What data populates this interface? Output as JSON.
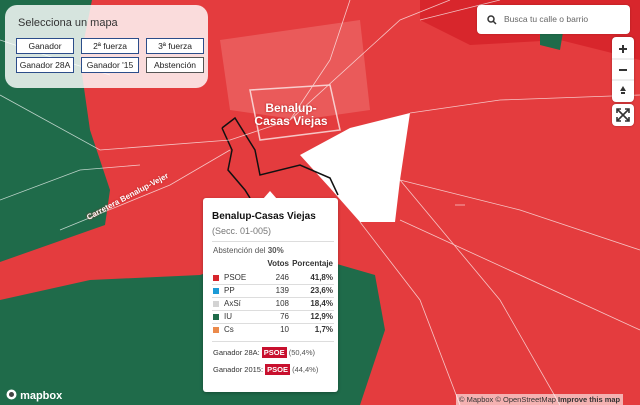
{
  "selector": {
    "title": "Selecciona un mapa",
    "buttons": [
      "Ganador",
      "2ª fuerza",
      "3ª fuerza",
      "Ganador 28A",
      "Ganador '15",
      "Abstención"
    ]
  },
  "search": {
    "placeholder": "Busca tu calle o barrio"
  },
  "map_labels": {
    "town": "Benalup-Casas Viejas",
    "road": "Carretera Benalup-Vejer"
  },
  "popup": {
    "title": "Benalup-Casas Viejas",
    "subtitle": "(Secc. 01-005)",
    "abstention_label": "Abstención del",
    "abstention_value": "30%",
    "headers": [
      "Votos",
      "Porcentaje"
    ],
    "rows": [
      {
        "party": "PSOE",
        "color": "#d7252c",
        "votes": 246,
        "pct": "41,8%"
      },
      {
        "party": "PP",
        "color": "#1b9ad6",
        "votes": 139,
        "pct": "23,6%"
      },
      {
        "party": "AxSí",
        "color": "#d3d3d3",
        "votes": 108,
        "pct": "18,4%"
      },
      {
        "party": "IU",
        "color": "#1f6b4a",
        "votes": 76,
        "pct": "12,9%"
      },
      {
        "party": "Cs",
        "color": "#eb8a4b",
        "votes": 10,
        "pct": "1,7%"
      }
    ],
    "winners": [
      {
        "label": "Ganador 28A:",
        "party": "PSOE",
        "pct": "(50,4%)"
      },
      {
        "label": "Ganador 2015:",
        "party": "PSOE",
        "pct": "(44,4%)"
      }
    ]
  },
  "footer": {
    "logo": "mapbox",
    "attribution": "© Mapbox © OpenStreetMap",
    "improve": "Improve this map"
  }
}
